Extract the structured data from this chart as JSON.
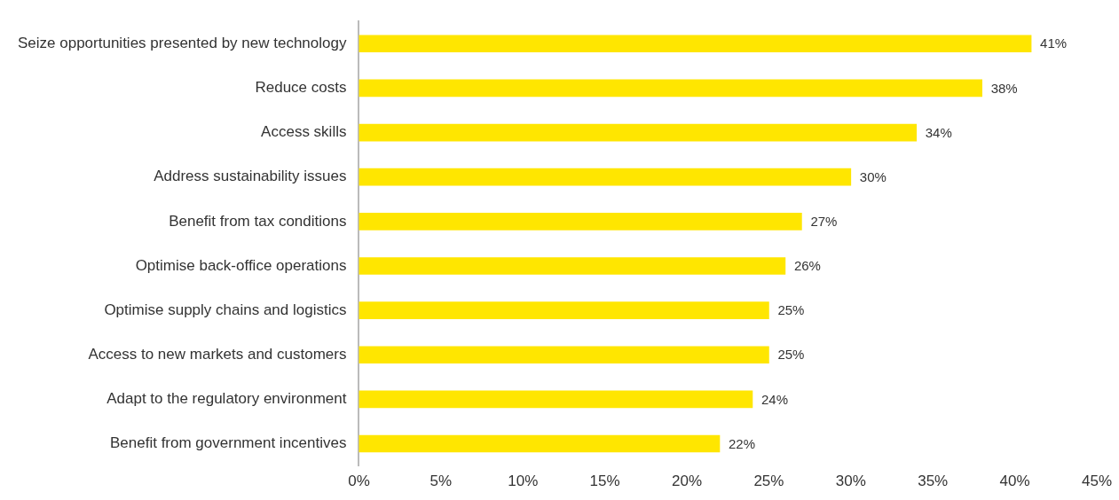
{
  "chart_data": {
    "type": "bar",
    "orientation": "horizontal",
    "categories": [
      "Seize opportunities presented by new technology",
      "Reduce costs",
      "Access skills",
      "Address sustainability issues",
      "Benefit from tax conditions",
      "Optimise back-office operations",
      "Optimise supply chains and logistics",
      "Access to new markets and customers",
      "Adapt to the regulatory environment",
      "Benefit from government incentives"
    ],
    "values": [
      41,
      38,
      34,
      30,
      27,
      26,
      25,
      25,
      24,
      22
    ],
    "value_labels": [
      "41%",
      "38%",
      "34%",
      "30%",
      "27%",
      "26%",
      "25%",
      "25%",
      "24%",
      "22%"
    ],
    "color": "#ffe600",
    "xlim": [
      0,
      45
    ],
    "xticks": [
      {
        "value": 0,
        "label": "0%"
      },
      {
        "value": 5,
        "label": "5%"
      },
      {
        "value": 10,
        "label": "10%"
      },
      {
        "value": 15,
        "label": "15%"
      },
      {
        "value": 20,
        "label": "20%"
      },
      {
        "value": 25,
        "label": "25%"
      },
      {
        "value": 30,
        "label": "30%"
      },
      {
        "value": 35,
        "label": "35%"
      },
      {
        "value": 40,
        "label": "40%"
      },
      {
        "value": 45,
        "label": "45%"
      }
    ],
    "grid": false,
    "legend": false
  }
}
